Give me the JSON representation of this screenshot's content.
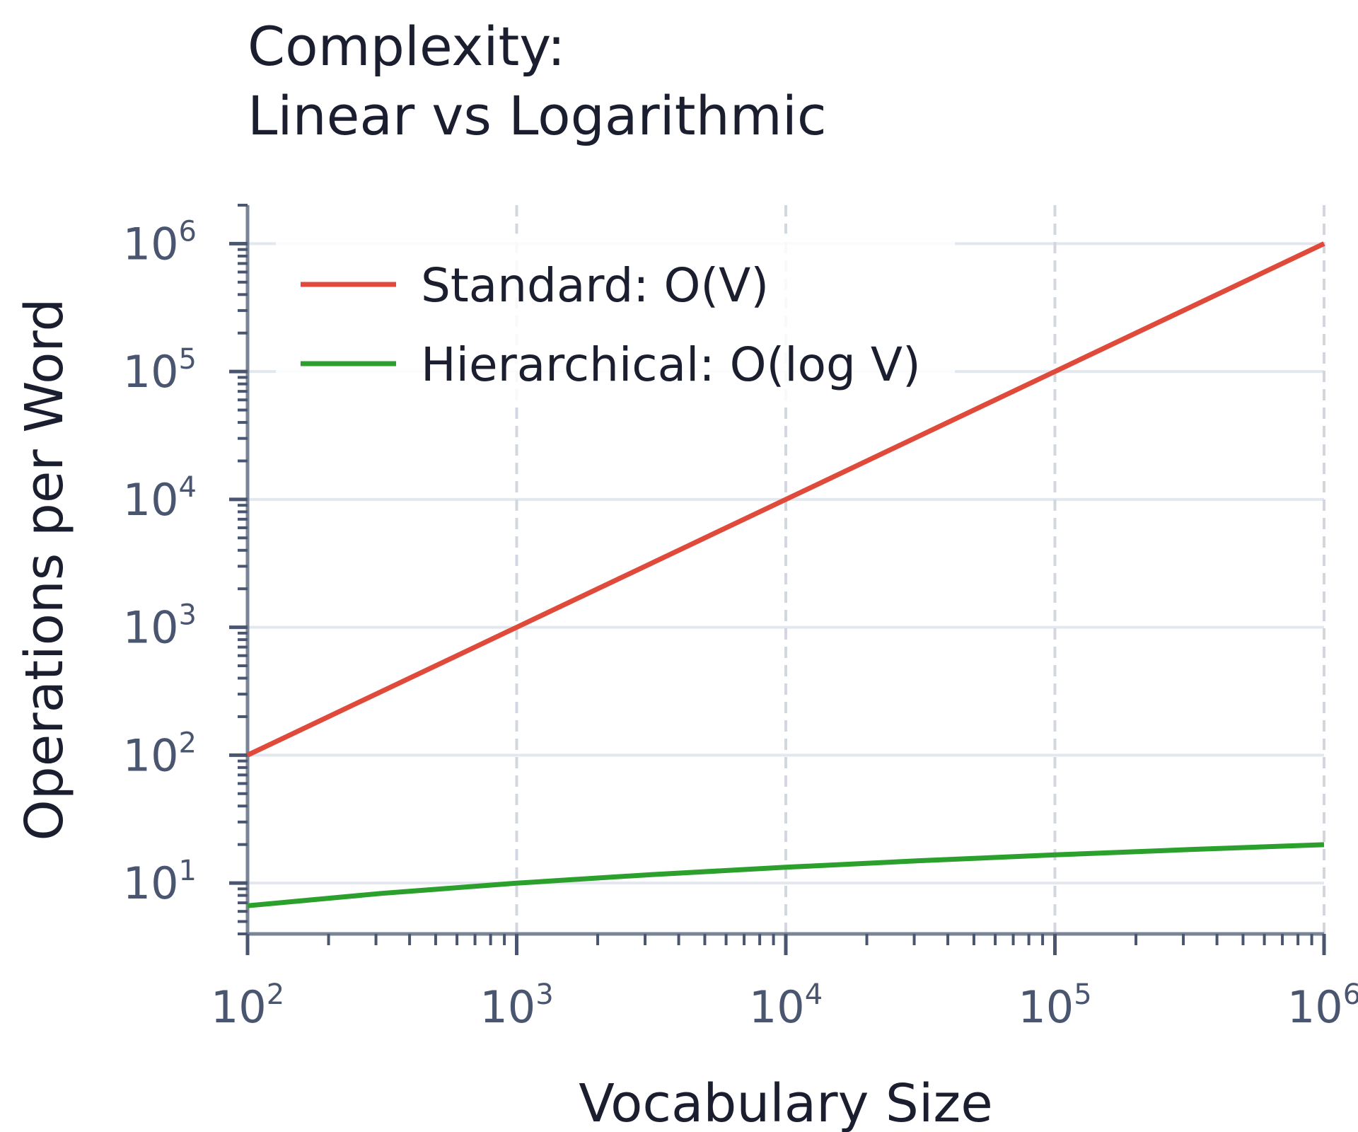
{
  "chart_data": {
    "type": "line",
    "title_lines": [
      "Complexity:",
      "Linear vs Logarithmic"
    ],
    "xlabel": "Vocabulary Size",
    "ylabel": "Operations per Word",
    "x_scale": "log",
    "y_scale": "log",
    "xlim": [
      100,
      1000000
    ],
    "ylim": [
      4,
      2000000
    ],
    "x_ticks": [
      {
        "value": 100,
        "base": "10",
        "exp": "2"
      },
      {
        "value": 1000,
        "base": "10",
        "exp": "3"
      },
      {
        "value": 10000,
        "base": "10",
        "exp": "4"
      },
      {
        "value": 100000,
        "base": "10",
        "exp": "5"
      },
      {
        "value": 1000000,
        "base": "10",
        "exp": "6"
      }
    ],
    "y_ticks": [
      {
        "value": 10,
        "base": "10",
        "exp": "1"
      },
      {
        "value": 100,
        "base": "10",
        "exp": "2"
      },
      {
        "value": 1000,
        "base": "10",
        "exp": "3"
      },
      {
        "value": 10000,
        "base": "10",
        "exp": "4"
      },
      {
        "value": 100000,
        "base": "10",
        "exp": "5"
      },
      {
        "value": 1000000,
        "base": "10",
        "exp": "6"
      }
    ],
    "grid": true,
    "legend_position": "top-left",
    "series": [
      {
        "name": "Standard: O(V)",
        "color": "#e04a3a",
        "x": [
          100,
          1000,
          10000,
          100000,
          1000000
        ],
        "y": [
          100,
          1000,
          10000,
          100000,
          1000000
        ]
      },
      {
        "name": "Hierarchical: O(log V)",
        "color": "#2ca02c",
        "x": [
          100,
          316,
          1000,
          3162,
          10000,
          31623,
          100000,
          316228,
          1000000
        ],
        "y": [
          6.64,
          8.3,
          9.97,
          11.63,
          13.29,
          14.95,
          16.61,
          18.27,
          19.93
        ]
      }
    ]
  }
}
